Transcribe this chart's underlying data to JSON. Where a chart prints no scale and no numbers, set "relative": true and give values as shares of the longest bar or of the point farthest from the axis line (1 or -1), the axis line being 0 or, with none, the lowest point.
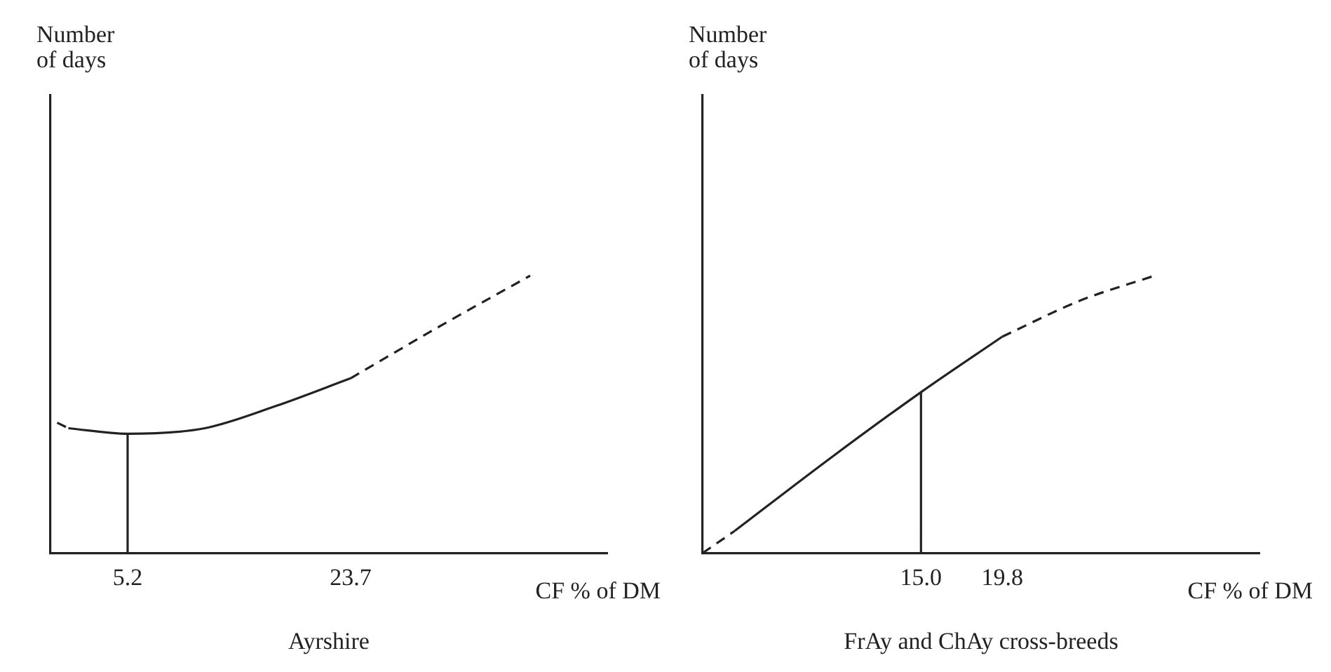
{
  "chart_data": [
    {
      "type": "line",
      "title": "Ayrshire",
      "xlabel": "CF % of DM",
      "ylabel": "Number of days",
      "relative": true,
      "tick_labels": "x",
      "xlim": [
        -1.2,
        45
      ],
      "xticks": [
        5.2,
        23.7
      ],
      "series": [
        {
          "color": "#222222",
          "line_style": "dashed",
          "x": [
            -0.65,
            0.28
          ],
          "values": [
            0.47,
            0.45
          ]
        },
        {
          "color": "#222222",
          "line_style": "solid",
          "x": [
            0.28,
            5.2,
            11.6,
            17.5,
            23.7
          ],
          "values": [
            0.45,
            0.43,
            0.45,
            0.53,
            0.63
          ]
        },
        {
          "color": "#222222",
          "line_style": "dashed",
          "x": [
            23.7,
            31.2,
            38.6
          ],
          "values": [
            0.63,
            0.82,
            1
          ]
        },
        {
          "color": "#222222",
          "line_style": "solid",
          "x": [
            5.2,
            5.2
          ],
          "values": [
            0,
            0.43
          ]
        }
      ]
    },
    {
      "type": "line",
      "title": "FrAy and ChAy cross-breeds",
      "xlabel": "CF % of DM",
      "ylabel": "Number of days",
      "relative": true,
      "tick_labels": "x",
      "xlim": [
        2.1,
        35
      ],
      "xticks": [
        {
          "value": 15,
          "label": "15.0"
        },
        19.8
      ],
      "series": [
        {
          "color": "#222222",
          "line_style": "dashed",
          "x": [
            2.1,
            4.0
          ],
          "values": [
            0,
            0.08
          ]
        },
        {
          "color": "#222222",
          "line_style": "solid",
          "x": [
            4.0,
            9.6,
            15.0,
            19.8
          ],
          "values": [
            0.08,
            0.34,
            0.58,
            0.78
          ]
        },
        {
          "color": "#222222",
          "line_style": "dashed",
          "x": [
            19.8,
            24.4,
            28.8
          ],
          "values": [
            0.78,
            0.91,
            1
          ]
        },
        {
          "color": "#222222",
          "line_style": "solid",
          "x": [
            15.0,
            15.0
          ],
          "values": [
            0,
            0.58
          ]
        }
      ]
    }
  ]
}
